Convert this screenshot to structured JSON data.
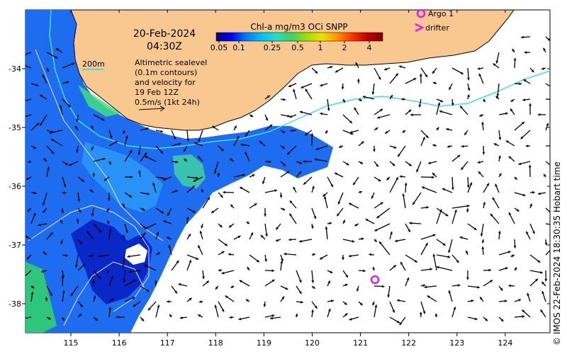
{
  "map": {
    "date": "20-Feb-2024",
    "time": "04:30Z",
    "colorbar": {
      "title": "Chl-a mg/m3 OCi SNPP",
      "tick_labels": [
        "0.05",
        "0.1",
        "0.25",
        "0.5",
        "1",
        "2",
        "4"
      ],
      "colors": [
        "#00007f",
        "#0000ff",
        "#0080ff",
        "#00c0ff",
        "#20e0c0",
        "#40d060",
        "#a0e000",
        "#f0e000",
        "#ff9000",
        "#ff3000",
        "#c00000",
        "#7f0000"
      ]
    },
    "contour_legend": {
      "label": "200m",
      "color": "#40e0e0"
    },
    "sealevel_note": [
      "Altimetric sealevel",
      "(0.1m contours)",
      "and velocity for",
      "19 Feb 12Z",
      "0.5m/s (1kt 24h)"
    ],
    "markers": [
      {
        "label": "Argo 1",
        "symbol": "circle",
        "color": "#e020e0"
      },
      {
        "label": "drifter",
        "symbol": "chevron",
        "color": "#e020e0"
      }
    ],
    "x_axis": {
      "labels": [
        "115",
        "116",
        "117",
        "118",
        "119",
        "120",
        "121",
        "122",
        "123",
        "124"
      ]
    },
    "y_axis": {
      "labels": [
        "-34",
        "-35",
        "-36",
        "-37",
        "-38"
      ]
    },
    "credit": "© IMOS 22-Feb-2024 18:30:35 Hobart time",
    "colors": {
      "land": "#f8c890",
      "ocean_cloud": "#ffffff",
      "arrow": "#000000",
      "contour": "#e0e0e0"
    }
  }
}
